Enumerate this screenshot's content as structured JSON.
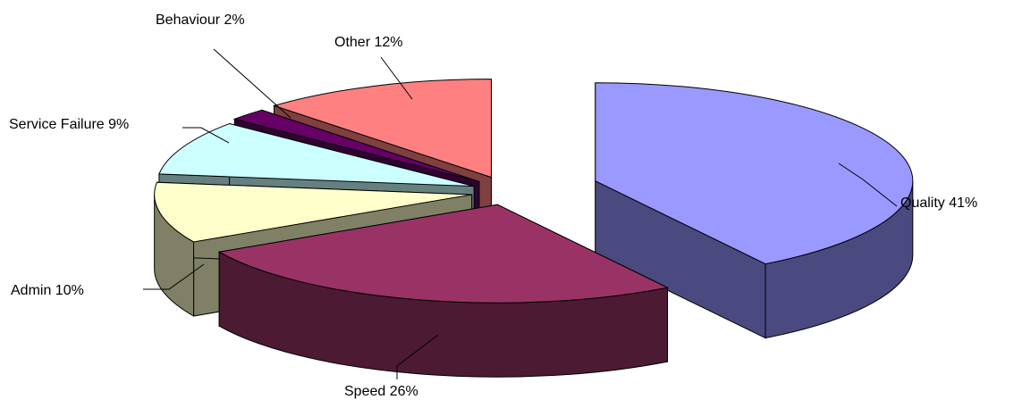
{
  "chart_data": {
    "type": "pie",
    "title": "",
    "three_d": true,
    "exploded": true,
    "slices": [
      {
        "name": "Quality",
        "value": 41,
        "label": "Quality  41%",
        "top": "#9999ff",
        "side": "#4a4a80"
      },
      {
        "name": "Speed",
        "value": 26,
        "label": "Speed 26%",
        "top": "#993366",
        "side": "#4d1a33"
      },
      {
        "name": "Admin",
        "value": 10,
        "label": "Admin 10%",
        "top": "#ffffcc",
        "side": "#808066"
      },
      {
        "name": "Service Failure",
        "value": 9,
        "label": "Service Failure 9%",
        "top": "#ccffff",
        "side": "#668080"
      },
      {
        "name": "Behaviour",
        "value": 2,
        "label": "Behaviour 2%",
        "top": "#660066",
        "side": "#330033"
      },
      {
        "name": "Other",
        "value": 12,
        "label": "Other 12%",
        "top": "#ff8080",
        "side": "#804040"
      }
    ]
  }
}
